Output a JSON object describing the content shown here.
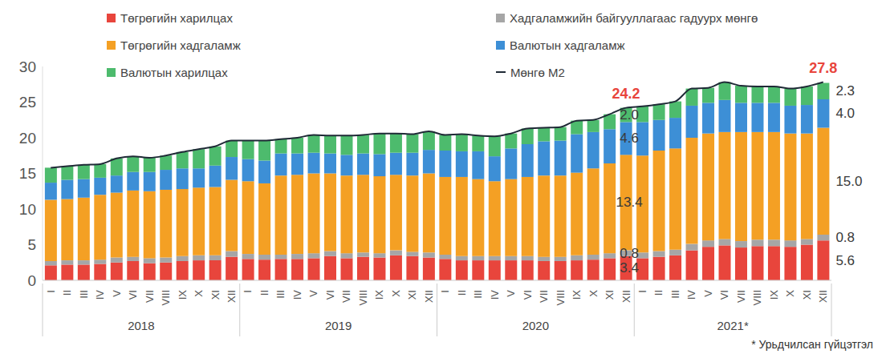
{
  "chart_data": {
    "type": "bar",
    "stacked": true,
    "grid": false,
    "legend": "top",
    "categories": [
      "I",
      "II",
      "III",
      "IV",
      "V",
      "VI",
      "VII",
      "VIII",
      "IX",
      "X",
      "XI",
      "XII",
      "I",
      "II",
      "III",
      "IV",
      "V",
      "VI",
      "VII",
      "VIII",
      "IX",
      "X",
      "XI",
      "XII",
      "I",
      "II",
      "III",
      "IV",
      "V",
      "VI",
      "VII",
      "VIII",
      "IX",
      "X",
      "XI",
      "XII",
      "I",
      "II",
      "III",
      "IV",
      "V",
      "VI",
      "VII",
      "VIII",
      "IX",
      "X",
      "XI",
      "XII"
    ],
    "groups": [
      {
        "label": "2018",
        "start": 0,
        "end": 11
      },
      {
        "label": "2019",
        "start": 12,
        "end": 23
      },
      {
        "label": "2020",
        "start": 24,
        "end": 35
      },
      {
        "label": "2021*",
        "start": 36,
        "end": 47
      }
    ],
    "ylim": [
      0,
      30
    ],
    "yticks": [
      0,
      5,
      10,
      15,
      20,
      25,
      30
    ],
    "note": "* Урьдчилсан гүйцэтгэл",
    "series": [
      {
        "name": "Төгрөгийн харилцах",
        "type": "bar",
        "color": "#e8453c",
        "values": [
          2.1,
          2.2,
          2.2,
          2.3,
          2.5,
          2.7,
          2.4,
          2.5,
          2.7,
          2.8,
          2.8,
          3.3,
          3.0,
          2.9,
          3.0,
          3.0,
          3.1,
          3.4,
          3.1,
          3.3,
          3.2,
          3.5,
          3.4,
          3.2,
          3.0,
          2.8,
          2.8,
          2.8,
          2.8,
          2.8,
          2.7,
          2.7,
          2.8,
          2.9,
          3.1,
          3.4,
          3.1,
          3.3,
          3.5,
          4.2,
          4.7,
          4.9,
          4.6,
          4.8,
          4.8,
          4.7,
          5.0,
          5.6
        ],
        "value_labels": [
          null,
          null,
          null,
          null,
          null,
          null,
          null,
          null,
          null,
          null,
          null,
          null,
          null,
          null,
          null,
          null,
          null,
          null,
          null,
          null,
          null,
          null,
          null,
          null,
          null,
          null,
          null,
          null,
          null,
          null,
          null,
          null,
          null,
          null,
          null,
          "3.4",
          null,
          null,
          null,
          null,
          null,
          null,
          null,
          null,
          null,
          null,
          null,
          "5.6"
        ]
      },
      {
        "name": "Хадгаламжийн байгууллагаас гадуурх мөнгө",
        "type": "bar",
        "color": "#a6a6a6",
        "values": [
          0.6,
          0.6,
          0.6,
          0.6,
          0.7,
          0.6,
          0.7,
          0.7,
          0.7,
          0.7,
          0.7,
          0.8,
          0.7,
          0.7,
          0.6,
          0.7,
          0.7,
          0.7,
          0.7,
          0.6,
          0.6,
          0.7,
          0.6,
          0.7,
          0.6,
          0.6,
          0.6,
          0.6,
          0.6,
          0.6,
          0.6,
          0.6,
          0.7,
          0.7,
          0.7,
          0.8,
          0.8,
          0.8,
          0.8,
          0.9,
          0.9,
          0.9,
          0.9,
          0.9,
          0.9,
          0.9,
          0.8,
          0.8
        ],
        "value_labels": [
          null,
          null,
          null,
          null,
          null,
          null,
          null,
          null,
          null,
          null,
          null,
          null,
          null,
          null,
          null,
          null,
          null,
          null,
          null,
          null,
          null,
          null,
          null,
          null,
          null,
          null,
          null,
          null,
          null,
          null,
          null,
          null,
          null,
          null,
          null,
          "0.8",
          null,
          null,
          null,
          null,
          null,
          null,
          null,
          null,
          null,
          null,
          null,
          "0.8"
        ]
      },
      {
        "name": "Төгрөгийн хадгаламж",
        "type": "bar",
        "color": "#f4a024",
        "values": [
          8.6,
          8.6,
          8.8,
          9.1,
          9.1,
          9.3,
          9.4,
          9.5,
          9.4,
          9.5,
          9.6,
          10.0,
          10.2,
          10.0,
          11.1,
          11.1,
          11.2,
          10.9,
          10.9,
          10.9,
          10.8,
          10.6,
          10.7,
          11.1,
          10.9,
          11.1,
          10.8,
          10.5,
          10.8,
          11.1,
          11.4,
          11.4,
          11.6,
          12.1,
          12.6,
          13.4,
          13.6,
          14.1,
          14.2,
          14.9,
          15.0,
          15.0,
          15.3,
          15.1,
          15.1,
          15.0,
          14.8,
          15
        ],
        "value_labels": [
          null,
          null,
          null,
          null,
          null,
          null,
          null,
          null,
          null,
          null,
          null,
          null,
          null,
          null,
          null,
          null,
          null,
          null,
          null,
          null,
          null,
          null,
          null,
          null,
          null,
          null,
          null,
          null,
          null,
          null,
          null,
          null,
          null,
          null,
          null,
          "13.4",
          null,
          null,
          null,
          null,
          null,
          null,
          null,
          null,
          null,
          null,
          null,
          "15.0"
        ]
      },
      {
        "name": "Валютын хадгаламж",
        "type": "bar",
        "color": "#3d8fd6",
        "values": [
          2.4,
          2.7,
          2.6,
          2.4,
          2.4,
          2.6,
          2.7,
          2.8,
          2.9,
          2.7,
          3.0,
          3.2,
          3.1,
          3.2,
          3.1,
          3.0,
          2.9,
          2.8,
          2.9,
          3.0,
          3.1,
          3.1,
          3.2,
          3.3,
          3.7,
          3.6,
          3.9,
          3.5,
          4.3,
          4.6,
          4.8,
          4.9,
          5.4,
          5.1,
          4.8,
          4.6,
          4.7,
          4.3,
          4.3,
          4.5,
          4.3,
          4.5,
          4.1,
          4.1,
          4.1,
          3.9,
          4.0,
          4.0
        ],
        "value_labels": [
          null,
          null,
          null,
          null,
          null,
          null,
          null,
          null,
          null,
          null,
          null,
          null,
          null,
          null,
          null,
          null,
          null,
          null,
          null,
          null,
          null,
          null,
          null,
          null,
          null,
          null,
          null,
          null,
          null,
          null,
          null,
          null,
          null,
          null,
          null,
          "4.6",
          null,
          null,
          null,
          null,
          null,
          null,
          null,
          null,
          null,
          null,
          null,
          "4.0"
        ]
      },
      {
        "name": "Валютын харилцах",
        "type": "bar",
        "color": "#4dbb6d",
        "values": [
          2.1,
          1.9,
          2.0,
          1.9,
          2.4,
          2.2,
          2.0,
          2.0,
          2.3,
          2.7,
          2.7,
          2.3,
          2.6,
          2.8,
          2.0,
          2.2,
          2.5,
          2.5,
          2.7,
          2.6,
          2.9,
          2.7,
          2.6,
          2.6,
          2.2,
          2.4,
          2.2,
          2.8,
          2.1,
          2.2,
          1.9,
          1.9,
          1.9,
          1.7,
          2.1,
          2.0,
          2.2,
          2.2,
          2.3,
          2.4,
          2.1,
          2.5,
          2.4,
          2.3,
          2.3,
          2.4,
          2.6,
          2.3
        ],
        "value_labels": [
          null,
          null,
          null,
          null,
          null,
          null,
          null,
          null,
          null,
          null,
          null,
          null,
          null,
          null,
          null,
          null,
          null,
          null,
          null,
          null,
          null,
          null,
          null,
          null,
          null,
          null,
          null,
          null,
          null,
          null,
          null,
          null,
          null,
          null,
          null,
          "2.0",
          null,
          null,
          null,
          null,
          null,
          null,
          null,
          null,
          null,
          null,
          null,
          "2.3"
        ]
      },
      {
        "name": "Мөнгө M2",
        "type": "line",
        "color": "#1f2a36",
        "values": [
          15.8,
          16.0,
          16.2,
          16.3,
          17.1,
          17.4,
          17.2,
          17.5,
          18.0,
          18.4,
          18.8,
          19.6,
          19.6,
          19.6,
          19.8,
          20.0,
          20.4,
          20.3,
          20.3,
          20.4,
          20.6,
          20.6,
          20.5,
          20.9,
          20.4,
          20.5,
          20.3,
          20.2,
          20.6,
          21.3,
          21.4,
          21.5,
          22.4,
          22.5,
          23.3,
          24.2,
          24.4,
          24.7,
          25.1,
          26.9,
          27.0,
          27.8,
          27.3,
          27.2,
          27.2,
          26.9,
          27.2,
          27.8
        ],
        "value_labels": [
          null,
          null,
          null,
          null,
          null,
          null,
          null,
          null,
          null,
          null,
          null,
          null,
          null,
          null,
          null,
          null,
          null,
          null,
          null,
          null,
          null,
          null,
          null,
          null,
          null,
          null,
          null,
          null,
          null,
          null,
          null,
          null,
          null,
          null,
          null,
          "24.2",
          null,
          null,
          null,
          null,
          null,
          null,
          null,
          null,
          null,
          null,
          null,
          "27.8"
        ]
      }
    ]
  }
}
